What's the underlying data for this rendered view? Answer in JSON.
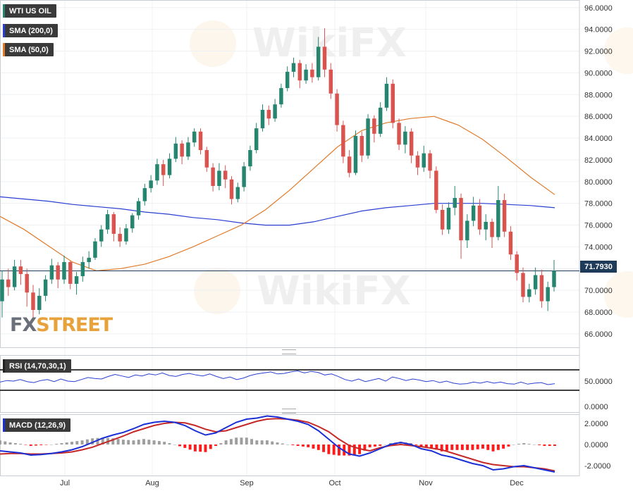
{
  "legends": {
    "instrument": "WTI US OIL",
    "sma200": "SMA (200,0)",
    "sma50": "SMA (50,0)",
    "rsi": "RSI (14,70,30,1)",
    "macd": "MACD (12,26,9)"
  },
  "colors": {
    "up": "#26856f",
    "down": "#d9534f",
    "sma200": "#2a3fd1",
    "sma50": "#e07b2a",
    "rsi_line": "#2a3fd1",
    "macd_line": "#1a2fd6",
    "signal_line": "#c62828",
    "hist_up": "#9e9e9e",
    "hist_down": "#ff1a1a",
    "axis_text": "#333333"
  },
  "price_tag": "71.7930",
  "brand": {
    "fx": "FX",
    "street": "STREET"
  },
  "chart_data": [
    {
      "type": "candlestick",
      "title": "WTI US OIL",
      "ylim": [
        64.7,
        96.7
      ],
      "y_ticks": [
        "96.0000",
        "94.0000",
        "92.0000",
        "90.0000",
        "88.0000",
        "86.0000",
        "84.0000",
        "82.0000",
        "80.0000",
        "78.0000",
        "76.0000",
        "74.0000",
        "72.0000",
        "70.0000",
        "68.0000",
        "66.0000"
      ],
      "x_ticks": [
        "Jul",
        "Aug",
        "Sep",
        "Oct",
        "Nov",
        "Dec"
      ],
      "current_price": 71.793,
      "series": [
        {
          "name": "SMA (200,0)",
          "values": [
            78.6,
            78.4,
            78.2,
            77.9,
            77.7,
            77.5,
            77.2,
            77.0,
            76.7,
            76.5,
            76.2,
            76.0,
            76.0,
            76.3,
            76.8,
            77.3,
            77.6,
            77.8,
            78.0,
            78.0,
            78.0,
            77.9,
            77.8,
            77.6
          ]
        },
        {
          "name": "SMA (50,0)",
          "values": [
            76.8,
            75.6,
            74.1,
            72.6,
            71.8,
            72.0,
            72.4,
            73.1,
            74.0,
            75.0,
            76.0,
            77.4,
            79.2,
            81.2,
            83.2,
            84.7,
            85.4,
            85.8,
            86.0,
            85.2,
            83.9,
            82.2,
            80.4,
            78.8
          ]
        }
      ],
      "candles": [
        [
          69.0,
          71.0,
          67.5,
          71.8
        ],
        [
          71.0,
          70.3,
          69.5,
          72.0
        ],
        [
          70.3,
          72.2,
          70.0,
          72.8
        ],
        [
          72.2,
          71.5,
          70.5,
          72.8
        ],
        [
          71.5,
          69.8,
          68.5,
          72.0
        ],
        [
          69.8,
          68.2,
          67.2,
          70.5
        ],
        [
          68.2,
          69.5,
          67.8,
          70.2
        ],
        [
          69.5,
          71.0,
          69.0,
          71.4
        ],
        [
          71.0,
          72.3,
          70.6,
          72.9
        ],
        [
          72.3,
          71.0,
          70.2,
          72.6
        ],
        [
          71.0,
          72.6,
          70.6,
          73.2
        ],
        [
          72.6,
          70.6,
          70.1,
          72.7
        ],
        [
          70.6,
          71.3,
          69.6,
          71.7
        ],
        [
          71.3,
          72.6,
          70.8,
          73.1
        ],
        [
          72.6,
          73.0,
          72.0,
          73.6
        ],
        [
          73.0,
          74.5,
          72.8,
          74.8
        ],
        [
          74.5,
          75.6,
          74.0,
          76.0
        ],
        [
          75.6,
          77.0,
          75.2,
          77.4
        ],
        [
          77.0,
          75.2,
          74.5,
          77.2
        ],
        [
          75.2,
          74.5,
          74.0,
          75.8
        ],
        [
          74.5,
          75.7,
          74.2,
          76.1
        ],
        [
          75.7,
          76.9,
          75.3,
          77.1
        ],
        [
          76.9,
          78.2,
          76.5,
          78.5
        ],
        [
          78.2,
          79.4,
          77.8,
          79.8
        ],
        [
          79.4,
          80.1,
          79.0,
          80.6
        ],
        [
          80.1,
          81.6,
          79.7,
          82.1
        ],
        [
          81.6,
          80.6,
          79.6,
          82.0
        ],
        [
          80.6,
          82.1,
          80.3,
          82.6
        ],
        [
          82.1,
          83.5,
          81.8,
          84.1
        ],
        [
          83.5,
          82.3,
          81.6,
          83.8
        ],
        [
          82.3,
          83.6,
          82.0,
          84.1
        ],
        [
          83.6,
          84.6,
          83.2,
          84.9
        ],
        [
          84.6,
          82.9,
          82.5,
          84.9
        ],
        [
          82.9,
          81.3,
          80.9,
          83.2
        ],
        [
          81.3,
          79.6,
          79.1,
          81.7
        ],
        [
          79.6,
          81.0,
          79.2,
          81.7
        ],
        [
          81.0,
          80.2,
          79.4,
          81.5
        ],
        [
          80.2,
          78.4,
          77.9,
          80.5
        ],
        [
          78.4,
          79.5,
          78.1,
          79.9
        ],
        [
          79.5,
          81.4,
          79.1,
          81.8
        ],
        [
          81.4,
          82.9,
          81.0,
          83.3
        ],
        [
          82.9,
          84.9,
          82.6,
          85.4
        ],
        [
          84.9,
          86.6,
          84.6,
          87.1
        ],
        [
          86.6,
          85.8,
          85.2,
          87.0
        ],
        [
          85.8,
          87.1,
          85.5,
          87.6
        ],
        [
          87.1,
          88.6,
          86.8,
          89.0
        ],
        [
          88.6,
          90.1,
          88.3,
          90.6
        ],
        [
          90.1,
          90.9,
          89.6,
          91.4
        ],
        [
          90.9,
          89.3,
          88.6,
          91.2
        ],
        [
          89.3,
          90.3,
          89.0,
          90.8
        ],
        [
          90.3,
          89.6,
          89.1,
          90.9
        ],
        [
          89.6,
          92.4,
          89.3,
          93.3
        ],
        [
          92.4,
          90.3,
          89.6,
          94.1
        ],
        [
          90.3,
          88.1,
          87.6,
          90.9
        ],
        [
          88.1,
          85.2,
          84.6,
          88.5
        ],
        [
          85.2,
          82.3,
          81.7,
          85.6
        ],
        [
          82.3,
          80.8,
          80.4,
          82.9
        ],
        [
          80.8,
          84.2,
          80.6,
          84.7
        ],
        [
          84.2,
          82.4,
          81.8,
          84.6
        ],
        [
          82.4,
          85.8,
          82.1,
          86.2
        ],
        [
          85.8,
          84.4,
          83.6,
          86.1
        ],
        [
          84.4,
          86.8,
          84.1,
          87.3
        ],
        [
          86.8,
          89.0,
          86.5,
          89.6
        ],
        [
          89.0,
          85.4,
          84.9,
          89.4
        ],
        [
          85.4,
          83.4,
          82.9,
          85.8
        ],
        [
          83.4,
          84.6,
          82.6,
          85.1
        ],
        [
          84.6,
          82.4,
          81.7,
          84.9
        ],
        [
          82.4,
          81.3,
          80.6,
          82.8
        ],
        [
          81.3,
          82.6,
          80.9,
          83.3
        ],
        [
          82.6,
          81.0,
          80.3,
          82.9
        ],
        [
          81.0,
          77.4,
          77.1,
          81.4
        ],
        [
          77.4,
          75.6,
          75.1,
          77.9
        ],
        [
          75.6,
          77.6,
          75.2,
          78.1
        ],
        [
          77.6,
          78.5,
          76.9,
          79.6
        ],
        [
          78.5,
          74.6,
          72.9,
          78.9
        ],
        [
          74.6,
          76.4,
          73.9,
          77.0
        ],
        [
          76.4,
          77.8,
          75.9,
          78.6
        ],
        [
          77.8,
          75.6,
          75.1,
          78.4
        ],
        [
          75.6,
          76.3,
          74.6,
          77.0
        ],
        [
          76.3,
          74.9,
          73.9,
          76.6
        ],
        [
          74.9,
          78.3,
          74.6,
          79.6
        ],
        [
          78.3,
          75.4,
          74.9,
          78.9
        ],
        [
          75.4,
          73.3,
          72.8,
          75.9
        ],
        [
          73.3,
          71.6,
          70.9,
          73.6
        ],
        [
          71.6,
          69.4,
          68.9,
          72.1
        ],
        [
          69.4,
          70.1,
          68.9,
          70.6
        ],
        [
          70.1,
          71.4,
          69.6,
          72.1
        ],
        [
          71.4,
          69.0,
          68.4,
          71.9
        ],
        [
          69.0,
          70.3,
          68.1,
          70.8
        ],
        [
          70.3,
          71.8,
          69.9,
          72.8
        ]
      ]
    },
    {
      "type": "line",
      "title": "RSI (14,70,30,1)",
      "y_ticks": [
        "50.0000",
        "0.0000"
      ],
      "series": [
        {
          "name": "RSI (14,70,30,1)",
          "values": [
            46,
            49,
            48,
            51,
            47,
            45,
            49,
            51,
            47,
            52,
            48,
            47,
            51,
            55,
            53,
            52,
            57,
            61,
            58,
            55,
            60,
            58,
            62,
            60,
            64,
            59,
            57,
            61,
            63,
            60,
            58,
            62,
            57,
            53,
            56,
            51,
            54,
            59,
            62,
            64,
            66,
            62,
            63,
            66,
            68,
            64,
            67,
            65,
            60,
            62,
            57,
            51,
            48,
            52,
            47,
            50,
            53,
            48,
            56,
            53,
            49,
            52,
            50,
            47,
            49,
            45,
            48,
            44,
            42,
            43,
            46,
            44,
            47,
            44,
            46,
            43,
            42,
            46,
            42,
            44,
            45,
            41,
            43
          ]
        }
      ]
    },
    {
      "type": "line",
      "title": "MACD (12,26,9)",
      "y_ticks": [
        "2.0000",
        "0.0000",
        "-2.0000"
      ],
      "series": [
        {
          "name": "MACD",
          "values": [
            -0.6,
            -0.7,
            -0.8,
            -1.0,
            -0.95,
            -0.85,
            -0.7,
            -0.5,
            -0.2,
            0.2,
            0.6,
            0.9,
            1.15,
            1.5,
            1.9,
            2.1,
            2.2,
            2.1,
            1.8,
            1.3,
            0.9,
            1.1,
            1.6,
            2.1,
            2.4,
            2.5,
            2.7,
            2.6,
            2.4,
            2.2,
            1.9,
            1.3,
            0.5,
            -0.3,
            -0.9,
            -1.1,
            -0.8,
            -0.4,
            0.0,
            0.2,
            0.0,
            -0.4,
            -0.6,
            -1.0,
            -1.2,
            -1.5,
            -1.8,
            -2.0,
            -2.4,
            -2.3,
            -2.1,
            -2.0,
            -2.2,
            -2.4,
            -2.6
          ]
        },
        {
          "name": "Signal",
          "values": [
            -0.9,
            -0.85,
            -0.85,
            -0.9,
            -0.9,
            -0.85,
            -0.8,
            -0.7,
            -0.5,
            -0.25,
            0.1,
            0.45,
            0.8,
            1.2,
            1.5,
            1.8,
            2.0,
            2.1,
            2.05,
            1.8,
            1.45,
            1.2,
            1.3,
            1.6,
            1.9,
            2.2,
            2.4,
            2.45,
            2.4,
            2.3,
            2.1,
            1.7,
            1.2,
            0.5,
            -0.1,
            -0.4,
            -0.6,
            -0.3,
            -0.1,
            0.0,
            -0.1,
            -0.2,
            -0.35,
            -0.5,
            -0.8,
            -1.1,
            -1.4,
            -1.7,
            -1.9,
            -2.0,
            -2.1,
            -2.1,
            -2.2,
            -2.3,
            -2.5
          ]
        }
      ]
    }
  ]
}
